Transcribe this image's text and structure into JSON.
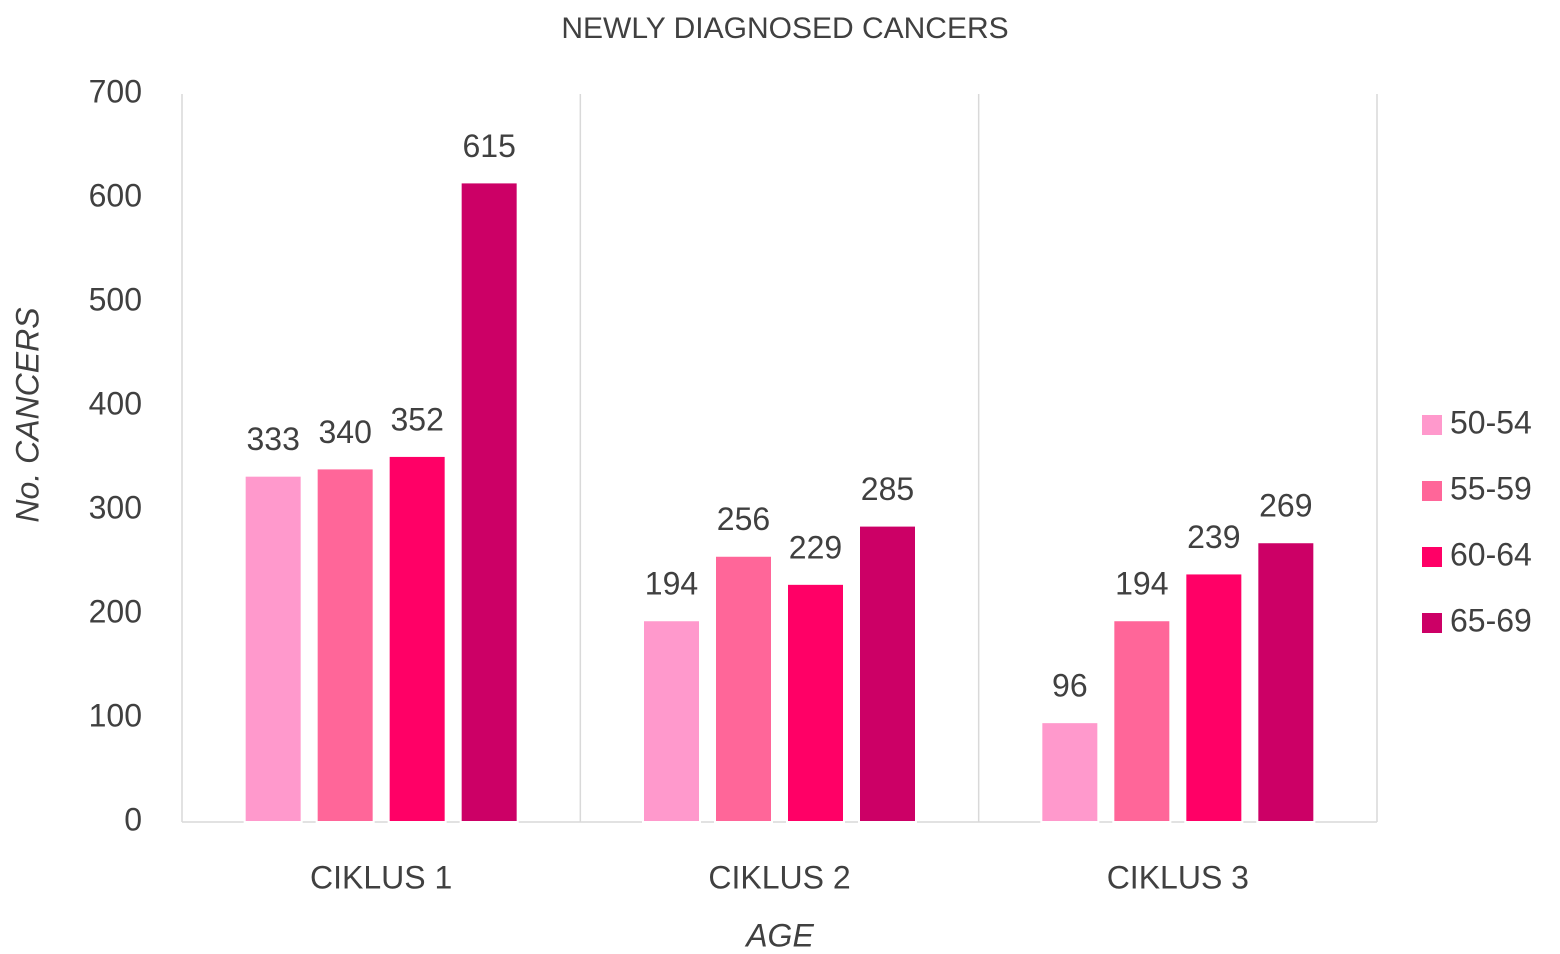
{
  "chart_data": {
    "type": "bar",
    "title": "NEWLY DIAGNOSED CANCERS",
    "x_label": "AGE",
    "y_label": "No. CANCERS",
    "categories": [
      "CIKLUS 1",
      "CIKLUS 2",
      "CIKLUS 3"
    ],
    "series": [
      {
        "name": "50-54",
        "color": "#ff99cc",
        "values": [
          333,
          194,
          96
        ]
      },
      {
        "name": "55-59",
        "color": "#ff6699",
        "values": [
          340,
          256,
          194
        ]
      },
      {
        "name": "60-64",
        "color": "#ff0066",
        "values": [
          352,
          229,
          239
        ]
      },
      {
        "name": "65-69",
        "color": "#cc0066",
        "values": [
          615,
          285,
          269
        ]
      }
    ],
    "ylim": [
      0,
      700
    ],
    "yticks": [
      0,
      100,
      200,
      300,
      400,
      500,
      600,
      700
    ],
    "legend": "right",
    "data_labels": true
  }
}
